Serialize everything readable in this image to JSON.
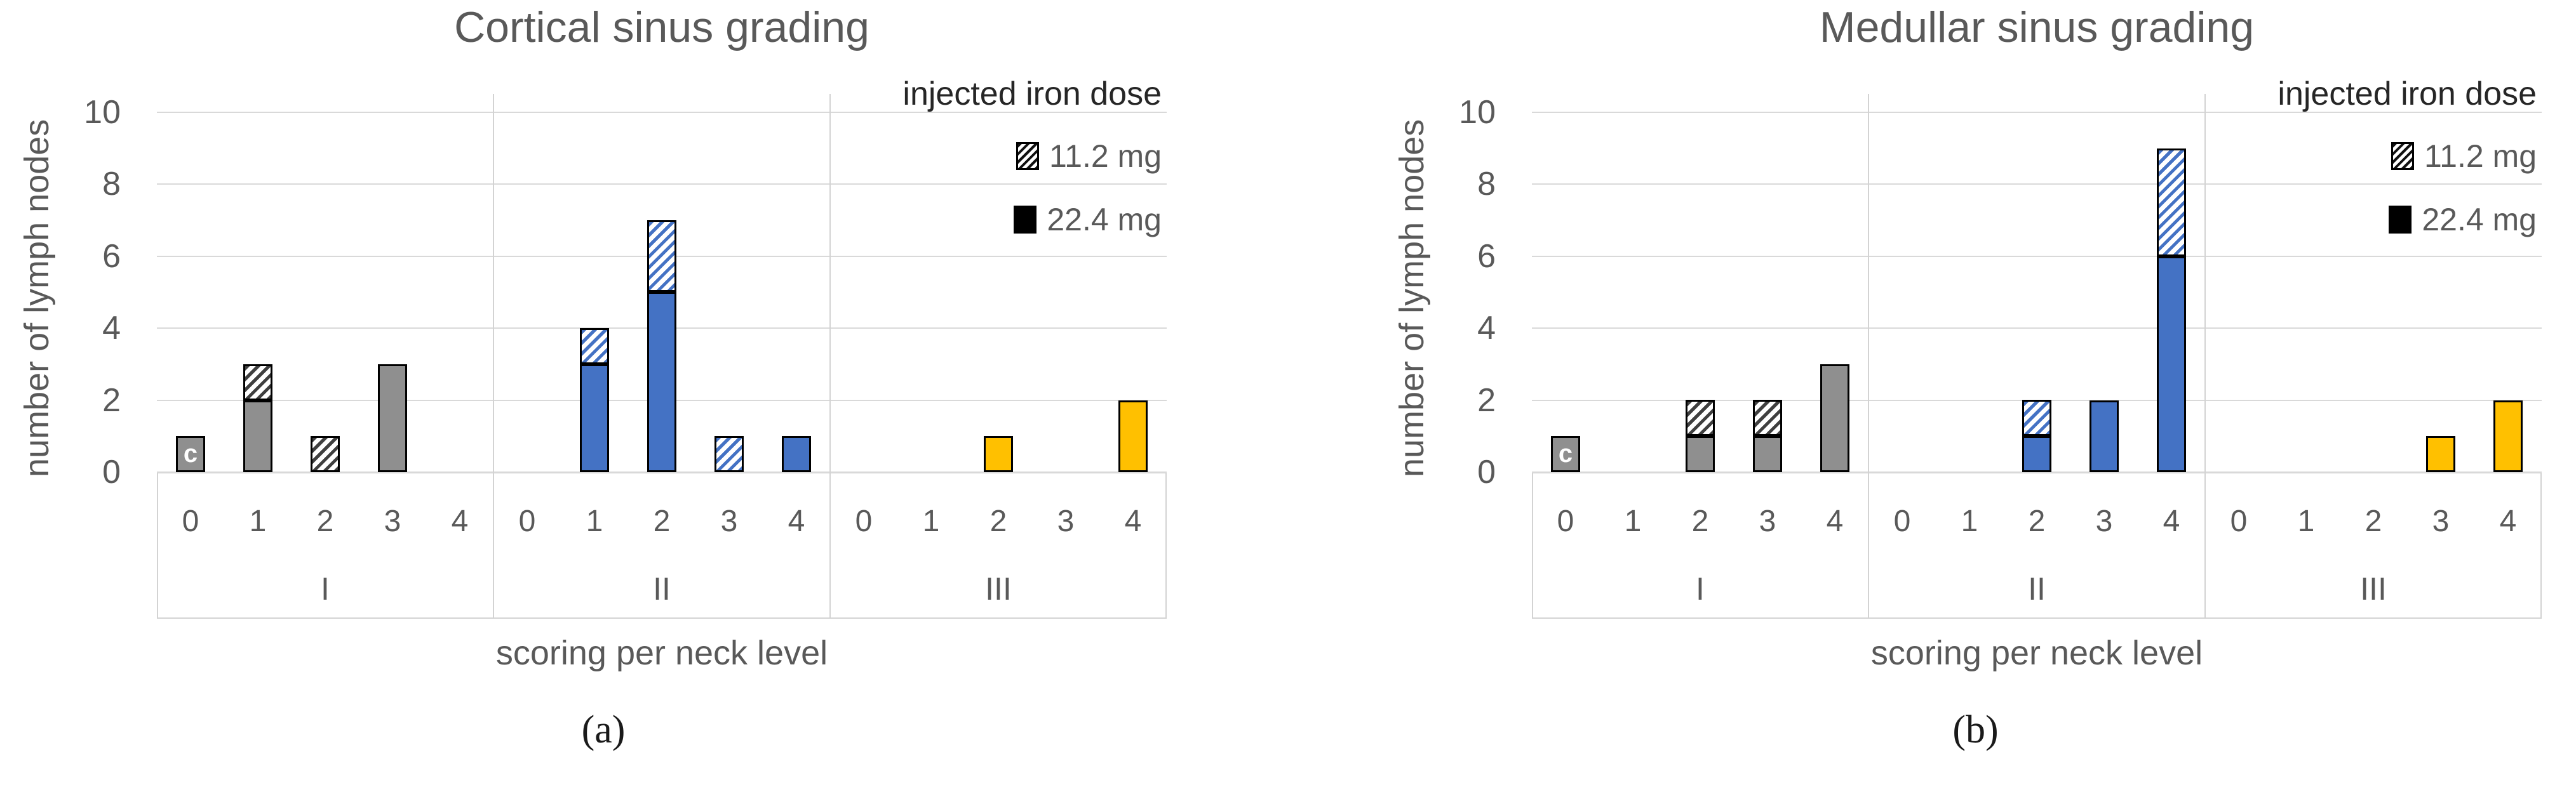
{
  "figure": {
    "panels": [
      {
        "title": "Cortical sinus grading",
        "caption": "(a)",
        "x_axis_title": "scoring per neck level",
        "y_axis_title": "number of lymph nodes",
        "legend": {
          "title": "injected iron dose",
          "items": [
            {
              "label": "11.2 mg"
            },
            {
              "label": "22.4 mg"
            }
          ]
        }
      },
      {
        "title": "Medullar sinus grading",
        "caption": "(b)",
        "x_axis_title": "scoring per neck level",
        "y_axis_title": "number of lymph nodes",
        "legend": {
          "title": "injected iron dose",
          "items": [
            {
              "label": "11.2 mg"
            },
            {
              "label": "22.4 mg"
            }
          ]
        }
      }
    ]
  },
  "chart_data": [
    {
      "type": "bar",
      "stacked": true,
      "title": "Cortical sinus grading",
      "xlabel": "scoring per neck level",
      "ylabel": "number of lymph nodes",
      "ylim": [
        0,
        10
      ],
      "y_ticks": [
        0,
        2,
        4,
        6,
        8,
        10
      ],
      "grid": true,
      "legend_position": "top-right",
      "legend_title": "injected iron dose",
      "score_labels": [
        "0",
        "1",
        "2",
        "3",
        "4"
      ],
      "groups": [
        {
          "label": "I",
          "color": "#8F8F8F",
          "hatch_color": "#3F3F3F"
        },
        {
          "label": "II",
          "color": "#4472C4",
          "hatch_color": "#4472C4"
        },
        {
          "label": "III",
          "color": "#FFC000",
          "hatch_color": "#FFC000"
        }
      ],
      "series": [
        {
          "name": "22.4 mg",
          "pattern": "solid",
          "values": [
            [
              1,
              2,
              0,
              3,
              0
            ],
            [
              0,
              3,
              5,
              0,
              1
            ],
            [
              0,
              0,
              1,
              0,
              2
            ]
          ]
        },
        {
          "name": "11.2 mg",
          "pattern": "hatched",
          "values": [
            [
              0,
              1,
              1,
              0,
              0
            ],
            [
              0,
              1,
              2,
              1,
              0
            ],
            [
              0,
              0,
              0,
              0,
              0
            ]
          ]
        }
      ],
      "annotations": [
        {
          "text": "c",
          "group": 0,
          "score": 0
        }
      ]
    },
    {
      "type": "bar",
      "stacked": true,
      "title": "Medullar sinus grading",
      "xlabel": "scoring per neck level",
      "ylabel": "number of lymph nodes",
      "ylim": [
        0,
        10
      ],
      "y_ticks": [
        0,
        2,
        4,
        6,
        8,
        10
      ],
      "grid": true,
      "legend_position": "top-right",
      "legend_title": "injected iron dose",
      "score_labels": [
        "0",
        "1",
        "2",
        "3",
        "4"
      ],
      "groups": [
        {
          "label": "I",
          "color": "#8F8F8F",
          "hatch_color": "#3F3F3F"
        },
        {
          "label": "II",
          "color": "#4472C4",
          "hatch_color": "#4472C4"
        },
        {
          "label": "III",
          "color": "#FFC000",
          "hatch_color": "#FFC000"
        }
      ],
      "series": [
        {
          "name": "22.4 mg",
          "pattern": "solid",
          "values": [
            [
              1,
              0,
              1,
              1,
              3
            ],
            [
              0,
              0,
              1,
              2,
              6
            ],
            [
              0,
              0,
              0,
              1,
              2
            ]
          ]
        },
        {
          "name": "11.2 mg",
          "pattern": "hatched",
          "values": [
            [
              0,
              0,
              1,
              1,
              0
            ],
            [
              0,
              0,
              1,
              0,
              3
            ],
            [
              0,
              0,
              0,
              0,
              0
            ]
          ]
        }
      ],
      "annotations": [
        {
          "text": "c",
          "group": 0,
          "score": 0
        }
      ]
    }
  ]
}
